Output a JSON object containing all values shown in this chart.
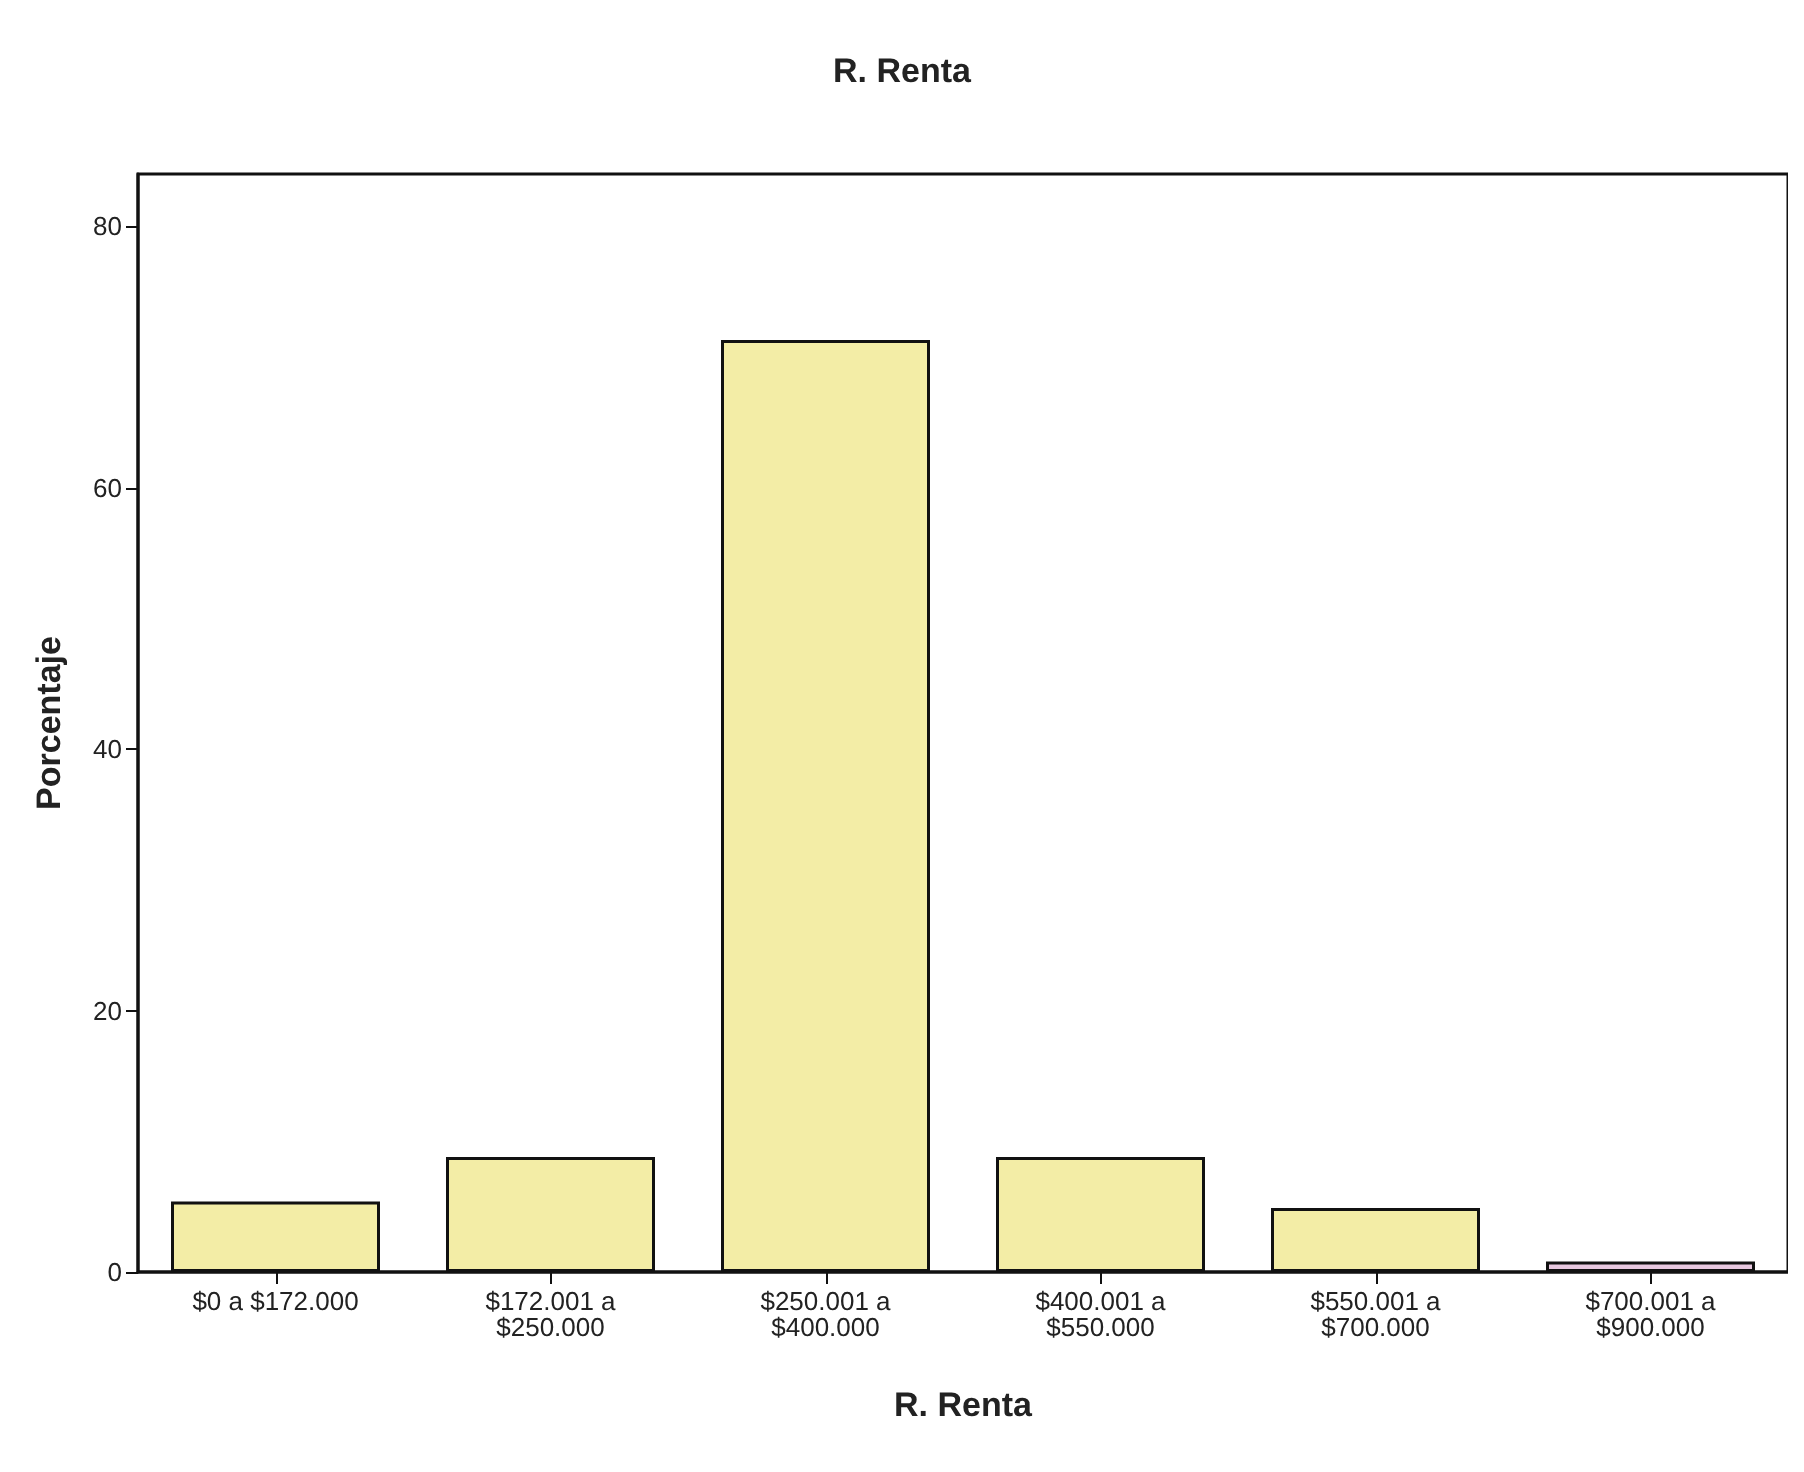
{
  "chart_data": {
    "type": "bar",
    "title": "R. Renta",
    "xlabel": "R. Renta",
    "ylabel": "Porcentaje",
    "categories": [
      "$0 a $172.000",
      "$172.001 a\n$250.000",
      "$250.001 a\n$400.000",
      "$400.001 a\n$550.000",
      "$550.001 a\n$700.000",
      "$700.001 a\n$900.000"
    ],
    "values": [
      5.4,
      8.8,
      71.3,
      8.8,
      4.9,
      0.8
    ],
    "colors": [
      "#f3eda6",
      "#f3eda6",
      "#f3eda6",
      "#f3eda6",
      "#f3eda6",
      "#e8c8e0"
    ],
    "ylim": [
      0,
      84
    ],
    "yticks": [
      0,
      20,
      40,
      60,
      80
    ],
    "grid": false
  }
}
